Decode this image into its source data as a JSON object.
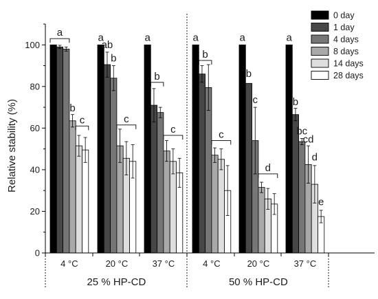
{
  "chart_data": {
    "type": "bar",
    "ylabel": "Relative stability (%)",
    "ylim": [
      0,
      110
    ],
    "yticks": [
      "0",
      "20",
      "40",
      "60",
      "80",
      "100"
    ],
    "groups": [
      {
        "label": "25 % HP-CD",
        "categories": [
          {
            "label": "4 °C",
            "values": [
              100,
              99,
              98,
              63.5,
              51.5,
              49.5
            ],
            "errors": [
              0.5,
              0.8,
              1,
              3,
              5,
              6
            ]
          },
          {
            "label": "20 °C",
            "values": [
              100,
              90.5,
              84,
              51.5,
              45.5,
              44
            ],
            "errors": [
              0.5,
              6,
              6,
              8,
              8,
              8
            ]
          },
          {
            "label": "37 °C",
            "values": [
              100,
              71,
              67.5,
              49,
              44,
              38.5
            ],
            "errors": [
              0.5,
              8,
              2.5,
              5,
              6,
              7
            ]
          }
        ]
      },
      {
        "label": "50 % HP-CD",
        "categories": [
          {
            "label": "4 °C",
            "values": [
              100,
              86,
              79.5,
              47,
              45,
              30
            ],
            "errors": [
              0.5,
              4,
              11,
              3.5,
              5,
              12
            ]
          },
          {
            "label": "20 °C",
            "values": [
              100,
              81.5,
              54,
              31.5,
              26,
              23.5
            ],
            "errors": [
              0.5,
              0.5,
              16,
              2.5,
              5,
              5
            ]
          },
          {
            "label": "37 °C",
            "values": [
              100,
              66.5,
              53.5,
              42.5,
              33,
              17.5
            ],
            "errors": [
              0.5,
              3,
              1.5,
              9,
              9,
              3
            ]
          }
        ]
      }
    ],
    "series": [
      {
        "name": "0 day",
        "color": "#000000"
      },
      {
        "name": "1 day",
        "color": "#474747"
      },
      {
        "name": "4 days",
        "color": "#767676"
      },
      {
        "name": "8 days",
        "color": "#a9a9a9"
      },
      {
        "name": "14 days",
        "color": "#dedede"
      },
      {
        "name": "28 days",
        "color": "#ffffff"
      }
    ],
    "significance": [
      {
        "group": 0,
        "category": 0,
        "items": [
          {
            "label": "a",
            "series": [
              0,
              1,
              2
            ],
            "bracket": true,
            "y": 103
          },
          {
            "label": "b",
            "series": [
              3
            ],
            "bracket": false,
            "y": 67
          },
          {
            "label": "c",
            "series": [
              4,
              5
            ],
            "bracket": true,
            "y": 61
          }
        ]
      },
      {
        "group": 0,
        "category": 1,
        "items": [
          {
            "label": "a",
            "series": [
              0
            ],
            "bracket": false,
            "y": 101
          },
          {
            "label": "ab",
            "series": [
              1
            ],
            "bracket": false,
            "y": 97.5
          },
          {
            "label": "b",
            "series": [
              2
            ],
            "bracket": false,
            "y": 91
          },
          {
            "label": "c",
            "series": [
              3,
              4,
              5
            ],
            "bracket": true,
            "y": 61.5
          }
        ]
      },
      {
        "group": 0,
        "category": 2,
        "items": [
          {
            "label": "a",
            "series": [
              0
            ],
            "bracket": false,
            "y": 101
          },
          {
            "label": "b",
            "series": [
              1,
              2
            ],
            "bracket": true,
            "y": 82
          },
          {
            "label": "c",
            "series": [
              3,
              4,
              5
            ],
            "bracket": true,
            "y": 56.5
          }
        ]
      },
      {
        "group": 1,
        "category": 0,
        "items": [
          {
            "label": "a",
            "series": [
              0
            ],
            "bracket": false,
            "y": 101
          },
          {
            "label": "b",
            "series": [
              1,
              2
            ],
            "bracket": true,
            "y": 92.5
          },
          {
            "label": "c",
            "series": [
              3,
              4,
              5
            ],
            "bracket": true,
            "y": 54
          }
        ]
      },
      {
        "group": 1,
        "category": 1,
        "items": [
          {
            "label": "a",
            "series": [
              0
            ],
            "bracket": false,
            "y": 101
          },
          {
            "label": "b",
            "series": [
              1
            ],
            "bracket": false,
            "y": 83.5
          },
          {
            "label": "c",
            "series": [
              2
            ],
            "bracket": false,
            "y": 71
          },
          {
            "label": "d",
            "series": [
              3,
              4,
              5
            ],
            "bracket": true,
            "y": 38
          }
        ]
      },
      {
        "group": 1,
        "category": 2,
        "items": [
          {
            "label": "a",
            "series": [
              0
            ],
            "bracket": false,
            "y": 101
          },
          {
            "label": "b",
            "series": [
              1
            ],
            "bracket": false,
            "y": 70
          },
          {
            "label": "bc",
            "series": [
              2
            ],
            "bracket": false,
            "y": 56
          },
          {
            "label": "cd",
            "series": [
              3
            ],
            "bracket": false,
            "y": 52
          },
          {
            "label": "d",
            "series": [
              4
            ],
            "bracket": false,
            "y": 43.5
          },
          {
            "label": "e",
            "series": [
              5
            ],
            "bracket": false,
            "y": 22
          }
        ]
      }
    ]
  }
}
